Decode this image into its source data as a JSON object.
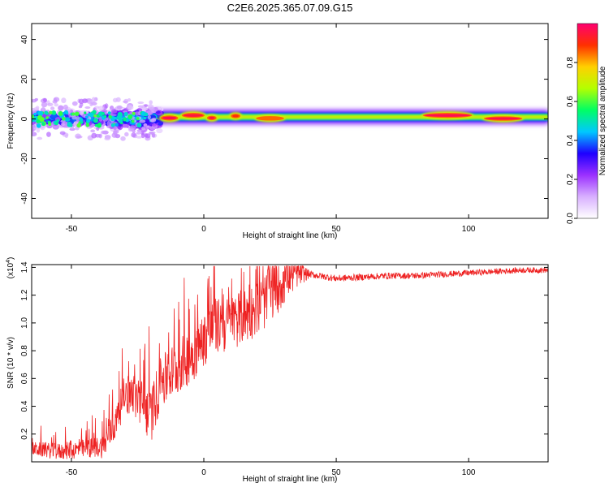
{
  "title": "C2E6.2025.365.07.09.G15",
  "chart_data": [
    {
      "type": "heatmap",
      "title": "C2E6.2025.365.07.09.G15",
      "xlabel": "Height of straight line (km)",
      "ylabel": "Frequency (Hz)",
      "xlim": [
        -65,
        130
      ],
      "ylim": [
        -50,
        48
      ],
      "xticks": [
        -50,
        0,
        50,
        100
      ],
      "yticks": [
        -40,
        -20,
        0,
        20,
        40
      ],
      "colorbar": {
        "label": "Normalized spectral amplitude",
        "range": [
          0.0,
          1.0
        ],
        "ticks": [
          "0.0",
          "0.2",
          "0.4",
          "0.6",
          "0.8"
        ],
        "stops": [
          "#ffffff",
          "#d8b0ff",
          "#9b30ff",
          "#1e00ff",
          "#00c8ff",
          "#00ff64",
          "#b4ff00",
          "#ffd000",
          "#ff3000",
          "#ff0070"
        ]
      },
      "band": {
        "segments": [
          {
            "x0": -65,
            "x1": -20,
            "center_hz": 0,
            "halfwidth_hz": 8,
            "pattern": "scattered"
          },
          {
            "x0": -20,
            "x1": 130,
            "center_hz": 1,
            "halfwidth_hz": 3,
            "pattern": "continuous"
          }
        ],
        "hotspots": [
          {
            "x": -13,
            "y": 0.5,
            "w": 6,
            "h": 1.6,
            "amp": 0.97
          },
          {
            "x": -4,
            "y": 1.8,
            "w": 8,
            "h": 1.6,
            "amp": 0.95
          },
          {
            "x": 3,
            "y": 0.5,
            "w": 3,
            "h": 1.4,
            "amp": 0.95
          },
          {
            "x": 12,
            "y": 1.5,
            "w": 3,
            "h": 1.4,
            "amp": 0.9
          },
          {
            "x": 25,
            "y": 0.3,
            "w": 10,
            "h": 1.4,
            "amp": 0.85
          },
          {
            "x": 92,
            "y": 1.8,
            "w": 18,
            "h": 1.6,
            "amp": 0.97
          },
          {
            "x": 113,
            "y": 0.2,
            "w": 14,
            "h": 1.4,
            "amp": 0.96
          }
        ]
      }
    },
    {
      "type": "line",
      "xlabel": "Height of straight line (km)",
      "ylabel": "SNR (10 * v/v)",
      "multiplier_label": "(x10",
      "multiplier_exp": "4",
      "xlim": [
        -65,
        130
      ],
      "ylim": [
        0.0,
        1.42
      ],
      "xticks": [
        -50,
        0,
        50,
        100
      ],
      "yticks": [
        0.2,
        0.4,
        0.6,
        0.8,
        1.0,
        1.2,
        1.4
      ],
      "series": [
        {
          "name": "SNR",
          "color": "#ee2222",
          "envelope_x": [
            -65,
            -55,
            -45,
            -38,
            -33,
            -30,
            -27,
            -24,
            -20,
            -17,
            -13,
            -10,
            -7,
            -4,
            0,
            4,
            8,
            13,
            18,
            22,
            26,
            30,
            35,
            40,
            50,
            60,
            70,
            80,
            90,
            100,
            110,
            120,
            130
          ],
          "envelope_y": [
            0.1,
            0.08,
            0.1,
            0.12,
            0.3,
            0.5,
            0.5,
            0.45,
            0.35,
            0.55,
            0.65,
            0.7,
            0.75,
            0.8,
            0.9,
            1.0,
            1.0,
            1.05,
            1.1,
            1.15,
            1.25,
            1.33,
            1.36,
            1.35,
            1.32,
            1.33,
            1.34,
            1.34,
            1.35,
            1.36,
            1.37,
            1.38,
            1.38
          ],
          "noise_x": [
            -65,
            -40,
            -20,
            30,
            40,
            130
          ],
          "noise_amp": [
            0.1,
            0.15,
            0.4,
            0.4,
            0.05,
            0.04
          ]
        }
      ]
    }
  ]
}
